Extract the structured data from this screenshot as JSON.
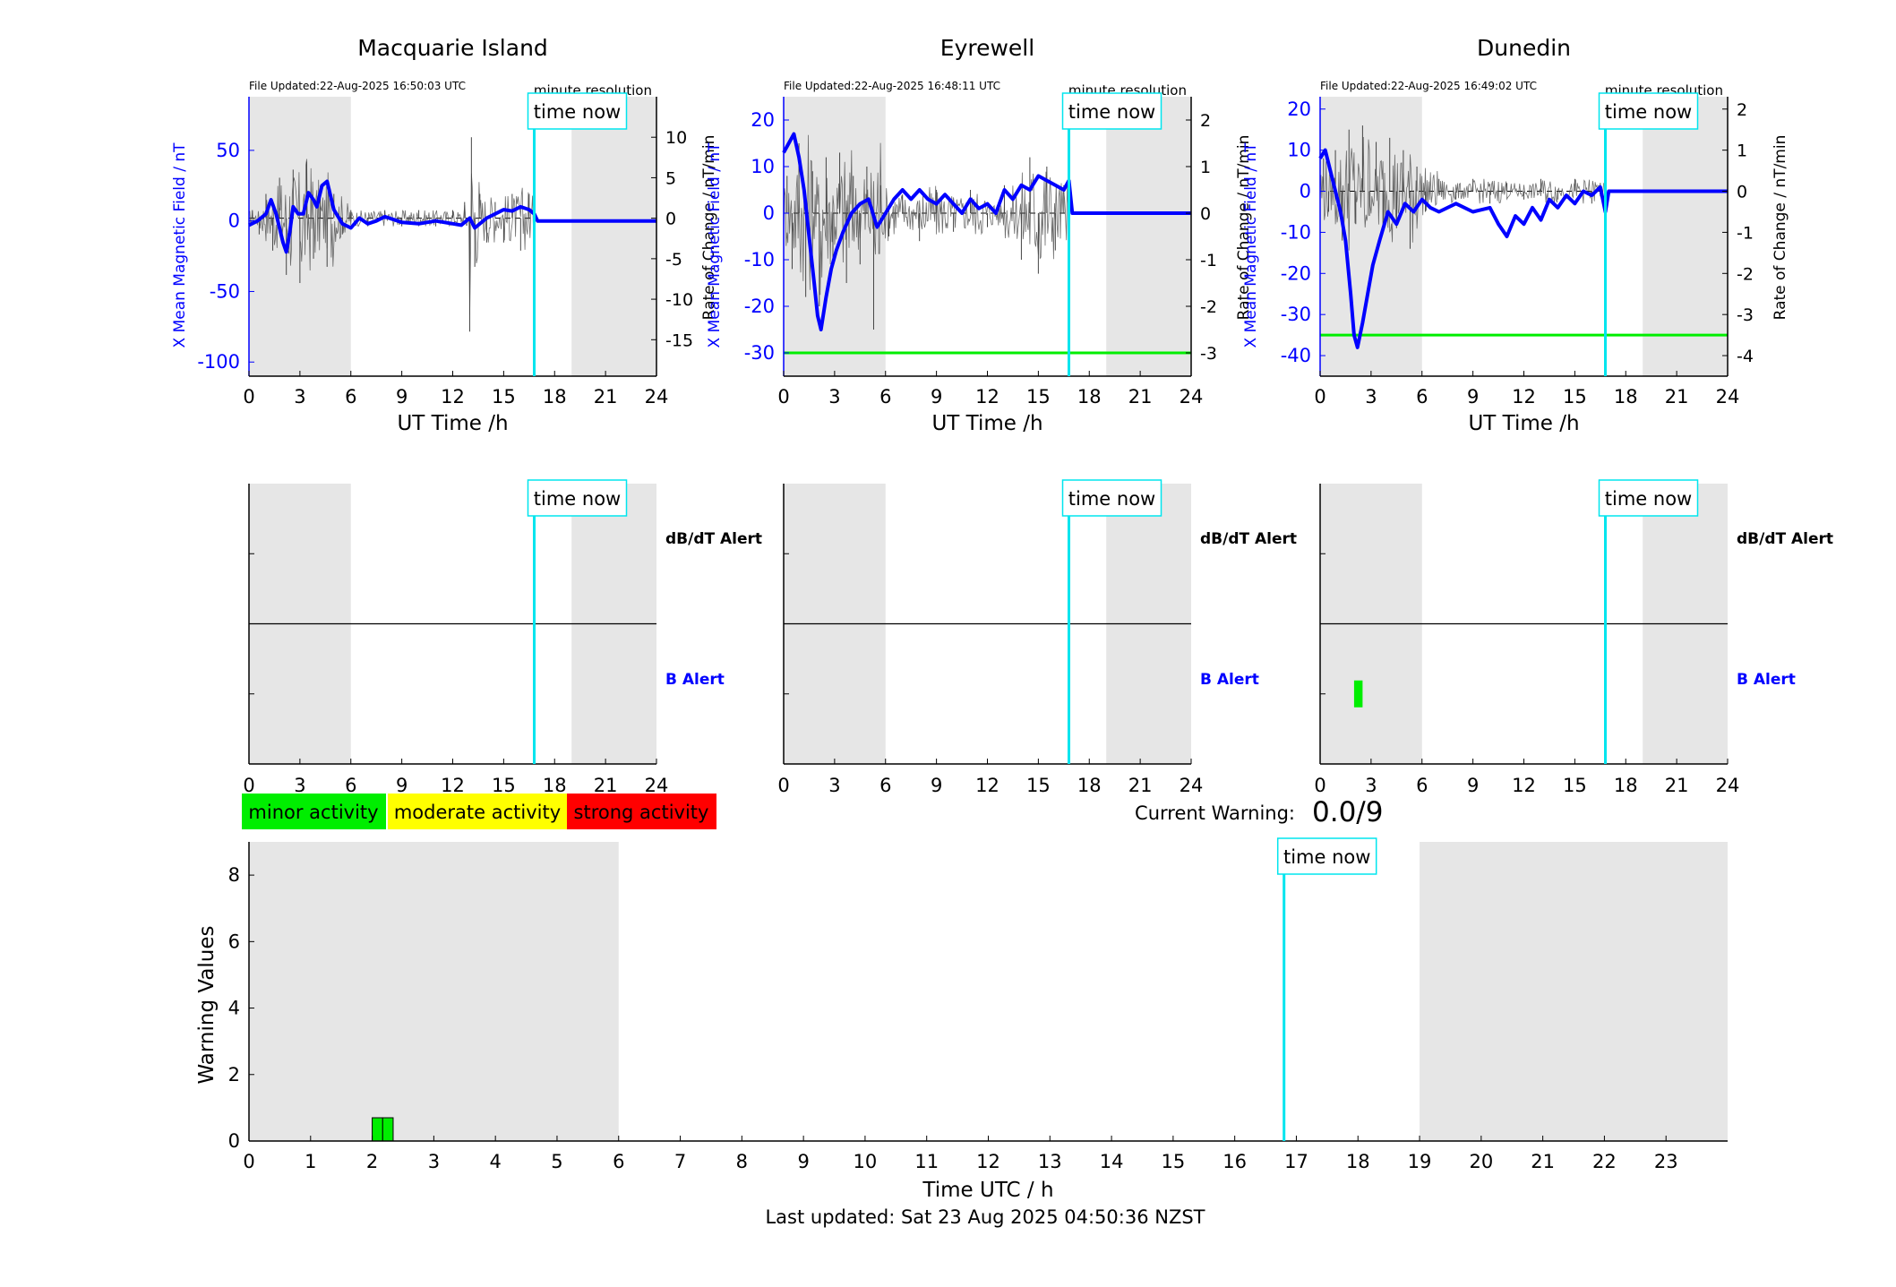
{
  "page": {
    "legend": {
      "minor": "minor activity",
      "moderate": "moderate activity",
      "strong": "strong activity"
    },
    "current_warning_label": "Current Warning:",
    "current_warning_value": "0.0/9",
    "last_updated": "Last updated: Sat 23 Aug 2025 04:50:36 NZST",
    "time_now_label": "time now",
    "alert_labels": {
      "dbdt": "dB/dT Alert",
      "b": "B Alert"
    },
    "colors": {
      "x_field": "#0000ff",
      "rate": "#000000",
      "time_now": "#00e5ee",
      "night_shade": "#e6e6e6",
      "threshold": "#00ee00",
      "minor": "#00ee00",
      "moderate": "#ffff00",
      "strong": "#ff0000"
    }
  },
  "chart_data": [
    {
      "type": "line",
      "title": "Macquarie Island",
      "file_updated": "File Updated:22-Aug-2025 16:50:03 UTC",
      "resolution": "minute resolution",
      "xlabel": "UT Time /h",
      "ylabel_left": "X Mean Magnetic Field / nT",
      "ylabel_right": "Rate of Change / nT/min",
      "xlim": [
        0,
        24
      ],
      "xticks": [
        0,
        3,
        6,
        9,
        12,
        15,
        18,
        21,
        24
      ],
      "ylim_left": [
        -110,
        88
      ],
      "yticks_left": [
        -100,
        -50,
        0,
        50
      ],
      "ylim_right": [
        -19.5,
        15
      ],
      "yticks_right": [
        -15,
        -10,
        -5,
        0,
        5,
        10
      ],
      "night_shade_ranges": [
        [
          0,
          6
        ],
        [
          19,
          24
        ]
      ],
      "time_now": 16.8,
      "threshold": null,
      "series": [
        {
          "name": "X Mean Magnetic Field",
          "x": [
            0,
            0.5,
            1,
            1.3,
            1.6,
            2,
            2.2,
            2.4,
            2.6,
            2.9,
            3.2,
            3.5,
            3.8,
            4,
            4.3,
            4.6,
            5,
            5.5,
            6,
            6.5,
            7,
            7.5,
            8,
            9,
            10,
            11,
            12,
            12.5,
            13,
            13.3,
            14,
            14.5,
            15,
            15.5,
            16,
            16.5,
            16.8,
            17,
            24
          ],
          "values": [
            -3,
            0,
            5,
            15,
            5,
            -15,
            -22,
            -8,
            10,
            5,
            5,
            20,
            15,
            10,
            25,
            28,
            8,
            -2,
            -5,
            2,
            -2,
            0,
            3,
            -1,
            -2,
            0,
            -2,
            -3,
            2,
            -5,
            2,
            5,
            8,
            7,
            10,
            8,
            5,
            0,
            0
          ]
        },
        {
          "name": "Rate of Change",
          "x": [
            0.2,
            0.6,
            1,
            1.4,
            1.8,
            2.2,
            2.6,
            3,
            3.4,
            3.8,
            4.2,
            4.6,
            5,
            5.5,
            6,
            7,
            8,
            9,
            10,
            11,
            12,
            12.7,
            13,
            13.1,
            13.3,
            13.6,
            14,
            14.5,
            15,
            15.5,
            16,
            16.5
          ],
          "values": [
            1,
            -2,
            3,
            -4,
            5,
            -7,
            6,
            -8,
            7,
            -5,
            4,
            -6,
            3,
            -2,
            1,
            -1,
            1,
            -1,
            1,
            -1,
            1,
            2,
            -14,
            10,
            -6,
            3,
            -3,
            2,
            -3,
            3,
            -4,
            3
          ]
        }
      ]
    },
    {
      "type": "line",
      "title": "Eyrewell",
      "file_updated": "File Updated:22-Aug-2025 16:48:11 UTC",
      "resolution": "minute resolution",
      "xlabel": "UT Time /h",
      "ylabel_left": "X Mean Magnetic Field / nT",
      "ylabel_right": "Rate of Change / nT/min",
      "xlim": [
        0,
        24
      ],
      "xticks": [
        0,
        3,
        6,
        9,
        12,
        15,
        18,
        21,
        24
      ],
      "ylim_left": [
        -35,
        25
      ],
      "yticks_left": [
        -30,
        -20,
        -10,
        0,
        10,
        20
      ],
      "ylim_right": [
        -3.5,
        2.5
      ],
      "yticks_right": [
        -3,
        -2,
        -1,
        0,
        1,
        2
      ],
      "night_shade_ranges": [
        [
          0,
          6
        ],
        [
          19,
          24
        ]
      ],
      "time_now": 16.8,
      "threshold": -30,
      "series": [
        {
          "name": "X Mean Magnetic Field",
          "x": [
            0,
            0.3,
            0.6,
            0.9,
            1.2,
            1.5,
            1.8,
            2.0,
            2.2,
            2.5,
            2.8,
            3.1,
            3.5,
            4.0,
            4.5,
            5.0,
            5.5,
            6.0,
            6.5,
            7.0,
            7.5,
            8.0,
            8.5,
            9.0,
            9.5,
            10,
            10.5,
            11,
            11.5,
            12,
            12.5,
            13,
            13.5,
            14,
            14.5,
            15,
            15.5,
            16,
            16.5,
            16.8,
            17,
            24
          ],
          "values": [
            13,
            15,
            17,
            12,
            5,
            -5,
            -15,
            -22,
            -25,
            -18,
            -12,
            -8,
            -4,
            0,
            2,
            3,
            -3,
            0,
            3,
            5,
            3,
            5,
            3,
            2,
            4,
            2,
            0,
            3,
            1,
            2,
            0,
            5,
            3,
            6,
            5,
            8,
            7,
            6,
            5,
            7,
            0,
            0
          ]
        },
        {
          "name": "Rate of Change",
          "x": [
            0.2,
            0.5,
            0.9,
            1.3,
            1.7,
            2.1,
            2.5,
            2.9,
            3.3,
            3.7,
            4.1,
            4.5,
            4.9,
            5.3,
            5.7,
            6.2,
            7,
            8,
            9,
            10,
            11,
            12,
            13,
            14,
            14.5,
            15,
            15.5,
            16,
            16.5
          ],
          "values": [
            0.8,
            -1.2,
            1.5,
            -1.8,
            0.9,
            -2.0,
            1.2,
            -1.0,
            1.3,
            -1.5,
            0.8,
            -1.1,
            1.0,
            -2.5,
            0.6,
            -0.5,
            0.4,
            -0.6,
            0.5,
            -0.4,
            0.5,
            -0.3,
            0.6,
            -1.0,
            1.2,
            -1.3,
            1.0,
            -0.8,
            0.6
          ]
        }
      ]
    },
    {
      "type": "line",
      "title": "Dunedin",
      "file_updated": "File Updated:22-Aug-2025 16:49:02 UTC",
      "resolution": "minute resolution",
      "xlabel": "UT Time /h",
      "ylabel_left": "X Mean Magnetic Field / nT",
      "ylabel_right": "Rate of Change / nT/min",
      "xlim": [
        0,
        24
      ],
      "xticks": [
        0,
        3,
        6,
        9,
        12,
        15,
        18,
        21,
        24
      ],
      "ylim_left": [
        -45,
        23
      ],
      "yticks_left": [
        -40,
        -30,
        -20,
        -10,
        0,
        10,
        20
      ],
      "ylim_right": [
        -4.5,
        2.3
      ],
      "yticks_right": [
        -4,
        -3,
        -2,
        -1,
        0,
        1,
        2
      ],
      "night_shade_ranges": [
        [
          0,
          6
        ],
        [
          19,
          24
        ]
      ],
      "time_now": 16.8,
      "threshold": -35,
      "series": [
        {
          "name": "X Mean Magnetic Field",
          "x": [
            0,
            0.3,
            0.6,
            0.9,
            1.2,
            1.5,
            1.8,
            2.0,
            2.2,
            2.5,
            2.8,
            3.1,
            3.5,
            4.0,
            4.5,
            5.0,
            5.5,
            6.0,
            6.5,
            7.0,
            8,
            9,
            10,
            10.5,
            11,
            11.5,
            12,
            12.5,
            13,
            13.5,
            14,
            14.5,
            15,
            15.5,
            16,
            16.5,
            16.8,
            17,
            24
          ],
          "values": [
            8,
            10,
            5,
            0,
            -5,
            -12,
            -25,
            -35,
            -38,
            -32,
            -25,
            -18,
            -12,
            -5,
            -8,
            -3,
            -5,
            -2,
            -4,
            -5,
            -3,
            -5,
            -4,
            -8,
            -11,
            -6,
            -8,
            -4,
            -7,
            -2,
            -4,
            -1,
            -3,
            0,
            -1,
            1,
            -5,
            0,
            0
          ]
        },
        {
          "name": "Rate of Change",
          "x": [
            0.2,
            0.5,
            0.9,
            1.3,
            1.7,
            2.1,
            2.5,
            2.9,
            3.3,
            3.7,
            4.1,
            4.5,
            4.9,
            5.3,
            5.7,
            6.2,
            7,
            8,
            9,
            10,
            11,
            12,
            13,
            14,
            15,
            16,
            16.5
          ],
          "values": [
            0.8,
            -0.5,
            1.0,
            -1.2,
            1.5,
            -0.8,
            1.6,
            -0.6,
            1.2,
            -1.0,
            1.3,
            -0.9,
            1.0,
            -1.4,
            0.6,
            -0.5,
            0.3,
            -0.2,
            0.3,
            -0.3,
            0.2,
            -0.2,
            0.3,
            -0.2,
            0.3,
            -0.3,
            0.2
          ]
        }
      ]
    },
    {
      "type": "bar",
      "title": "",
      "xlabel": "",
      "ylabel": "",
      "xlim": [
        0,
        24
      ],
      "xticks": [
        0,
        3,
        6,
        9,
        12,
        15,
        18,
        21,
        24
      ],
      "lanes": [
        "dB/dT Alert",
        "B Alert"
      ],
      "night_shade_ranges": [
        [
          0,
          6
        ],
        [
          19,
          24
        ]
      ],
      "time_now": 16.8,
      "markers": []
    },
    {
      "type": "bar",
      "title": "",
      "xlabel": "",
      "ylabel": "",
      "xlim": [
        0,
        24
      ],
      "xticks": [
        0,
        3,
        6,
        9,
        12,
        15,
        18,
        21,
        24
      ],
      "lanes": [
        "dB/dT Alert",
        "B Alert"
      ],
      "night_shade_ranges": [
        [
          0,
          6
        ],
        [
          19,
          24
        ]
      ],
      "time_now": 16.8,
      "markers": []
    },
    {
      "type": "bar",
      "title": "",
      "xlabel": "",
      "ylabel": "",
      "xlim": [
        0,
        24
      ],
      "xticks": [
        0,
        3,
        6,
        9,
        12,
        15,
        18,
        21,
        24
      ],
      "lanes": [
        "dB/dT Alert",
        "B Alert"
      ],
      "night_shade_ranges": [
        [
          0,
          6
        ],
        [
          19,
          24
        ]
      ],
      "time_now": 16.8,
      "markers": [
        {
          "lane": "B Alert",
          "x_start": 2.0,
          "x_end": 2.5,
          "level": "minor"
        }
      ]
    },
    {
      "type": "bar",
      "title": "",
      "xlabel": "Time UTC / h",
      "ylabel": "Warning Values",
      "xlim": [
        0,
        24
      ],
      "xticks": [
        0,
        1,
        2,
        3,
        4,
        5,
        6,
        7,
        8,
        9,
        10,
        11,
        12,
        13,
        14,
        15,
        16,
        17,
        18,
        19,
        20,
        21,
        22,
        23
      ],
      "ylim": [
        0,
        9
      ],
      "yticks": [
        0,
        2,
        4,
        6,
        8
      ],
      "night_shade_ranges": [
        [
          0,
          6
        ],
        [
          19,
          24
        ]
      ],
      "time_now": 16.8,
      "bars": [
        {
          "x_start": 2.0,
          "x_end": 2.17,
          "value": 0.7,
          "level": "minor"
        },
        {
          "x_start": 2.17,
          "x_end": 2.34,
          "value": 0.7,
          "level": "minor"
        }
      ]
    }
  ]
}
